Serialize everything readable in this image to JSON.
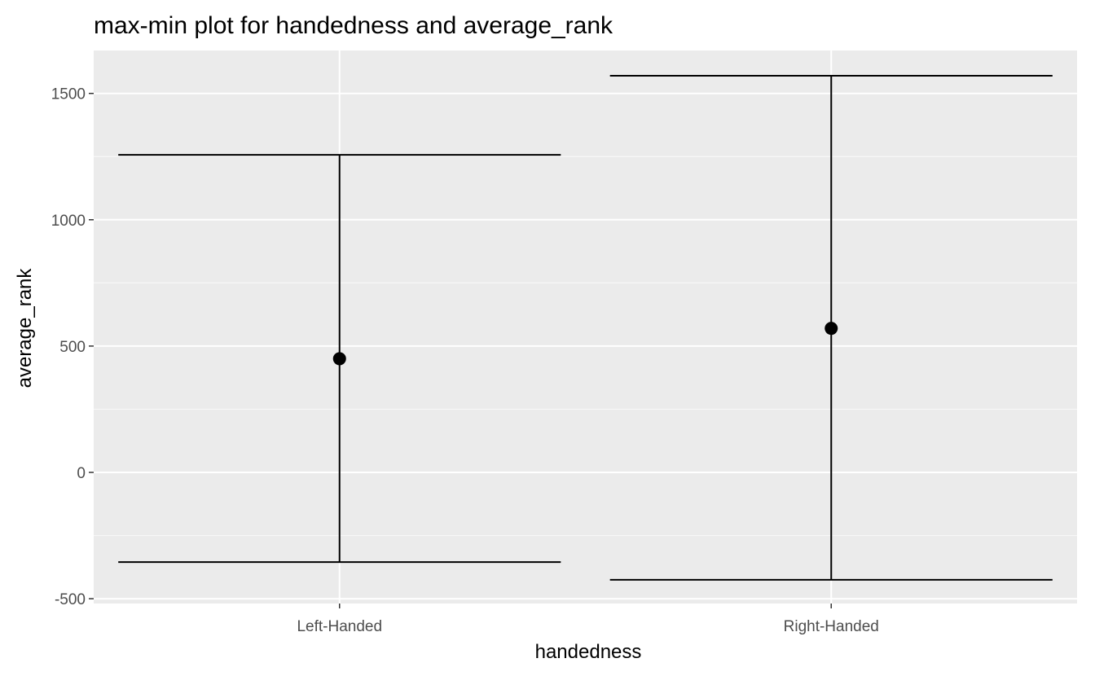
{
  "chart_data": {
    "type": "errorbar",
    "title": "max-min plot for handedness and average_rank",
    "xlabel": "handedness",
    "ylabel": "average_rank",
    "categories": [
      "Left-Handed",
      "Right-Handed"
    ],
    "series": [
      {
        "points": [
          {
            "category": "Left-Handed",
            "mean": 450,
            "min": -355,
            "max": 1257
          },
          {
            "category": "Right-Handed",
            "mean": 570,
            "min": -425,
            "max": 1570
          }
        ]
      }
    ],
    "ylim": [
      -500,
      1500
    ],
    "y_ticks": [
      -500,
      0,
      500,
      1000,
      1500
    ],
    "y_tick_labels": [
      "-500",
      "0",
      "500",
      "1000",
      "1500"
    ],
    "grid": true,
    "legend": "none",
    "colors": {
      "panel_background": "#EBEBEB",
      "grid_major": "#FFFFFF",
      "grid_minor": "#F7F7F7",
      "marks": "#000000",
      "tick_label": "#4D4D4D"
    }
  }
}
